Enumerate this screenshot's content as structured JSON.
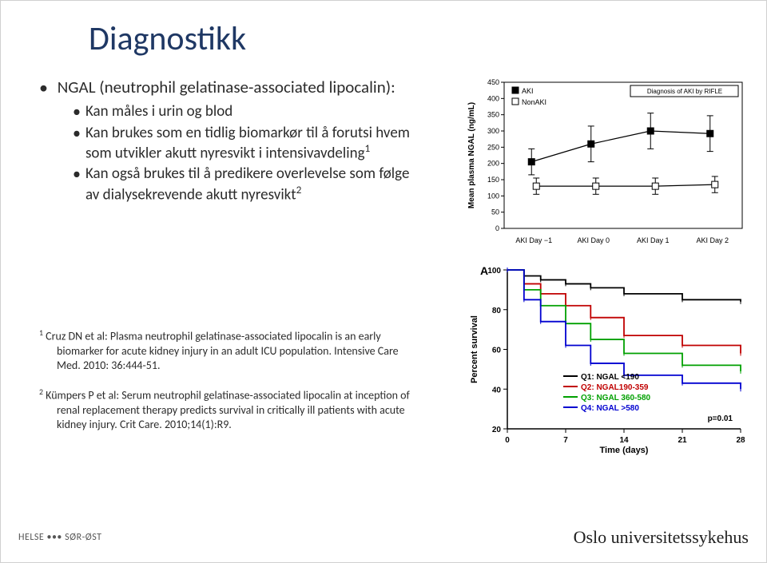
{
  "title": "Diagnostikk",
  "bullets": {
    "main": "NGAL (neutrophil gelatinase-associated lipocalin):",
    "subs": [
      "Kan måles i urin og blod",
      "Kan brukes som en tidlig biomarkør til å forutsi hvem som utvikler akutt nyresvikt i intensivavdeling",
      "Kan også brukes til å predikere overlevelse som følge av dialysekrevende akutt nyresvikt"
    ],
    "sup1": "1",
    "sup2": "2"
  },
  "references": {
    "r1_sup": "1",
    "r1": "Cruz DN et al: Plasma neutrophil gelatinase-associated lipocalin is an early biomarker for acute kidney injury in an adult ICU population. Intensive Care Med. 2010: 36:444-51.",
    "r2_sup": "2",
    "r2": "Kümpers P et al: Serum neutrophil gelatinase-associated lipocalin at inception of renal replacement therapy predicts survival in critically ill patients with acute kidney injury. Crit Care. 2010;14(1):R9."
  },
  "footer": {
    "left_text": "HELSE ••• SØR-ØST",
    "right_text": "Oslo universitetssykehus"
  },
  "chart_top": {
    "type": "line-with-error",
    "ylabel": "Mean plasma NGAL (ng/mL)",
    "legend": [
      "AKI",
      "NonAKI"
    ],
    "legend_box": "Diagnosis of AKI by RIFLE",
    "x_categories": [
      "AKI Day −1",
      "AKI Day 0",
      "AKI Day 1",
      "AKI Day 2"
    ],
    "x_positions": [
      0,
      1,
      2,
      3
    ],
    "ylim": [
      0,
      450
    ],
    "ytick_step": 50,
    "series": {
      "AKI": {
        "marker": "square-filled",
        "values": [
          205,
          260,
          300,
          292
        ],
        "err": [
          40,
          55,
          55,
          55
        ]
      },
      "NonAKI": {
        "marker": "square-open",
        "values": [
          130,
          130,
          130,
          135
        ],
        "err": [
          25,
          25,
          25,
          25
        ]
      }
    },
    "line_color": "#000000",
    "background_color": "#ffffff",
    "axis_color": "#000000",
    "font_size": 9
  },
  "chart_bottom": {
    "type": "survival-step",
    "panel_label": "A",
    "ylabel": "Percent survival",
    "xlabel": "Time (days)",
    "xlim": [
      0,
      28
    ],
    "xticks": [
      0,
      7,
      14,
      21,
      28
    ],
    "ylim": [
      20,
      100
    ],
    "yticks": [
      20,
      40,
      60,
      80,
      100
    ],
    "p_value": "p=0.01",
    "legend": [
      {
        "label": "Q1: NGAL <190",
        "color": "#000000"
      },
      {
        "label": "Q2: NGAL190-359",
        "color": "#c00000"
      },
      {
        "label": "Q3: NGAL 360-580",
        "color": "#00a000"
      },
      {
        "label": "Q4: NGAL >580",
        "color": "#0000d0"
      }
    ],
    "series": {
      "Q1": {
        "color": "#000000",
        "points": [
          [
            0,
            100
          ],
          [
            2,
            97
          ],
          [
            4,
            95
          ],
          [
            7,
            93
          ],
          [
            10,
            91
          ],
          [
            14,
            88
          ],
          [
            21,
            85
          ],
          [
            28,
            84
          ]
        ]
      },
      "Q2": {
        "color": "#c00000",
        "points": [
          [
            0,
            100
          ],
          [
            2,
            93
          ],
          [
            4,
            88
          ],
          [
            7,
            82
          ],
          [
            10,
            76
          ],
          [
            14,
            67
          ],
          [
            21,
            62
          ],
          [
            28,
            58
          ]
        ]
      },
      "Q3": {
        "color": "#00a000",
        "points": [
          [
            0,
            100
          ],
          [
            2,
            90
          ],
          [
            4,
            82
          ],
          [
            7,
            73
          ],
          [
            10,
            65
          ],
          [
            14,
            58
          ],
          [
            21,
            52
          ],
          [
            28,
            49
          ]
        ]
      },
      "Q4": {
        "color": "#0000d0",
        "points": [
          [
            0,
            100
          ],
          [
            2,
            85
          ],
          [
            4,
            74
          ],
          [
            7,
            62
          ],
          [
            10,
            53
          ],
          [
            14,
            47
          ],
          [
            21,
            43
          ],
          [
            28,
            40
          ]
        ]
      }
    },
    "line_width": 1.8,
    "font_size": 9,
    "background_color": "#ffffff",
    "axis_color": "#000000"
  }
}
